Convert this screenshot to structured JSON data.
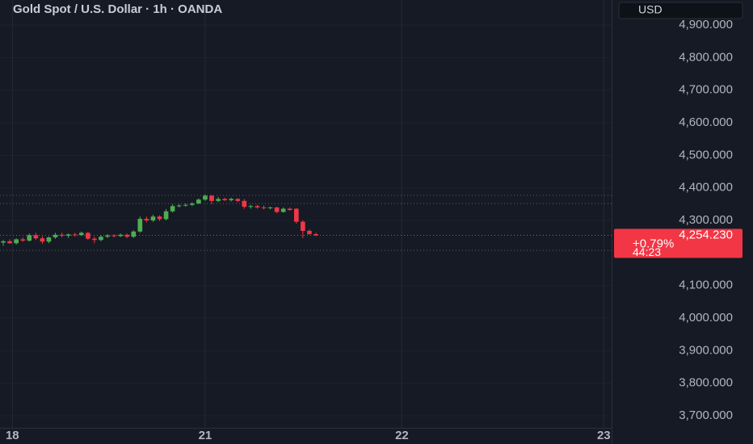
{
  "chart_data": {
    "type": "candlestick",
    "title": "Gold Spot / U.S. Dollar · 1h · OANDA",
    "currency": "USD",
    "up_color": "#4caf50",
    "down_color": "#f23645",
    "grid": true,
    "ylim": [
      3663,
      4977
    ],
    "yticks": [
      {
        "value": 4900,
        "label": "4,900.000"
      },
      {
        "value": 4800,
        "label": "4,800.000"
      },
      {
        "value": 4700,
        "label": "4,700.000"
      },
      {
        "value": 4600,
        "label": "4,600.000"
      },
      {
        "value": 4500,
        "label": "4,500.000"
      },
      {
        "value": 4400,
        "label": "4,400.000"
      },
      {
        "value": 4300,
        "label": "4,300.000"
      },
      {
        "value": 4100,
        "label": "4,100.000"
      },
      {
        "value": 4000,
        "label": "4,000.000"
      },
      {
        "value": 3900,
        "label": "3,900.000"
      },
      {
        "value": 3800,
        "label": "3,800.000"
      },
      {
        "value": 3700,
        "label": "3,700.000"
      }
    ],
    "xlim": [
      -0.5,
      93.4
    ],
    "xticks": [
      {
        "value": 1.4,
        "label": "18"
      },
      {
        "value": 31,
        "label": "21"
      },
      {
        "value": 61.2,
        "label": "22"
      },
      {
        "value": 92.2,
        "label": "23"
      }
    ],
    "price_lines": [
      4377,
      4352,
      4208
    ],
    "last_price": {
      "value": 4254.23,
      "label": "4,254.230"
    },
    "change": "+0.79%",
    "countdown": "44:23",
    "open": [
      4232,
      4236,
      4230,
      4242,
      4238,
      4255,
      4245,
      4235,
      4248,
      4256,
      4253,
      4257,
      4255,
      4262,
      4244,
      4240,
      4250,
      4254,
      4252,
      4256,
      4250,
      4266,
      4305,
      4300,
      4312,
      4304,
      4328,
      4344,
      4346,
      4348,
      4352,
      4364,
      4376,
      4360,
      4366,
      4362,
      4366,
      4360,
      4342,
      4344,
      4340,
      4338,
      4340,
      4326,
      4336,
      4336,
      4296,
      4268,
      4258
    ],
    "high": [
      4240,
      4242,
      4245,
      4248,
      4260,
      4262,
      4252,
      4250,
      4262,
      4262,
      4260,
      4262,
      4266,
      4264,
      4250,
      4255,
      4258,
      4258,
      4260,
      4260,
      4270,
      4312,
      4312,
      4318,
      4316,
      4335,
      4350,
      4350,
      4352,
      4356,
      4368,
      4380,
      4378,
      4372,
      4370,
      4370,
      4368,
      4366,
      4348,
      4348,
      4346,
      4342,
      4342,
      4340,
      4340,
      4338,
      4300,
      4272,
      4262
    ],
    "low": [
      4222,
      4228,
      4226,
      4234,
      4235,
      4240,
      4228,
      4230,
      4244,
      4248,
      4246,
      4250,
      4252,
      4240,
      4230,
      4236,
      4246,
      4248,
      4249,
      4246,
      4246,
      4262,
      4294,
      4296,
      4298,
      4300,
      4324,
      4340,
      4342,
      4344,
      4350,
      4360,
      4350,
      4356,
      4360,
      4358,
      4356,
      4336,
      4336,
      4336,
      4334,
      4334,
      4322,
      4324,
      4330,
      4290,
      4246,
      4256,
      4252
    ],
    "close": [
      4236,
      4230,
      4242,
      4238,
      4255,
      4245,
      4235,
      4248,
      4256,
      4253,
      4257,
      4255,
      4262,
      4244,
      4240,
      4250,
      4254,
      4252,
      4256,
      4250,
      4266,
      4305,
      4300,
      4312,
      4304,
      4328,
      4344,
      4346,
      4348,
      4352,
      4364,
      4376,
      4360,
      4366,
      4362,
      4366,
      4360,
      4342,
      4344,
      4340,
      4338,
      4340,
      4326,
      4336,
      4332,
      4296,
      4268,
      4258,
      4254.23
    ]
  }
}
